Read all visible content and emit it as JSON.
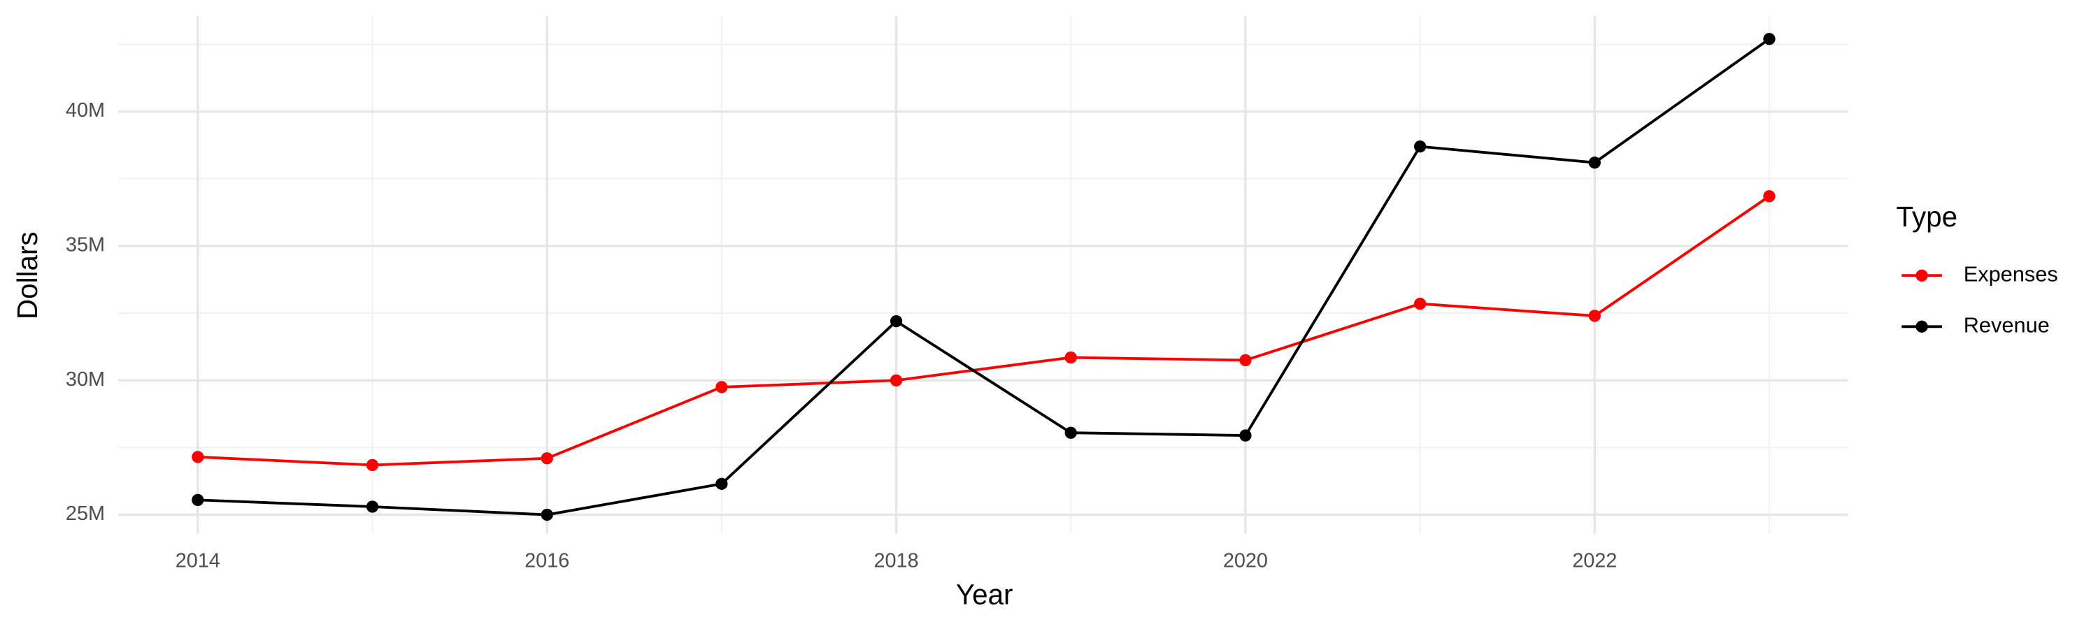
{
  "chart_data": {
    "type": "line",
    "x_label": "Year",
    "y_label": "Dollars",
    "x": [
      2014,
      2015,
      2016,
      2017,
      2018,
      2019,
      2020,
      2021,
      2022,
      2023
    ],
    "series": [
      {
        "name": "Expenses",
        "color": "#ff0000",
        "values": [
          27150000,
          26850000,
          27100000,
          29750000,
          30000000,
          30850000,
          30750000,
          32850000,
          32400000,
          36850000
        ]
      },
      {
        "name": "Revenue",
        "color": "#000000",
        "values": [
          25550000,
          25300000,
          25000000,
          26150000,
          32200000,
          28050000,
          27950000,
          38700000,
          38100000,
          42700000
        ]
      }
    ],
    "xlim": [
      2013.545,
      2023.45
    ],
    "ylim": [
      24300000,
      43550000
    ],
    "xticks": [
      2014,
      2016,
      2018,
      2020,
      2022
    ],
    "yticks": [
      {
        "value": 25000000,
        "label": "25M"
      },
      {
        "value": 30000000,
        "label": "30M"
      },
      {
        "value": 35000000,
        "label": "35M"
      },
      {
        "value": 40000000,
        "label": "40M"
      }
    ],
    "x_minor_grid": [
      2015,
      2017,
      2019,
      2021,
      2023
    ],
    "y_minor_grid": [
      27500000,
      32500000,
      37500000,
      42500000
    ],
    "grid": true,
    "legend_title": "Type",
    "legend_position": "right"
  }
}
